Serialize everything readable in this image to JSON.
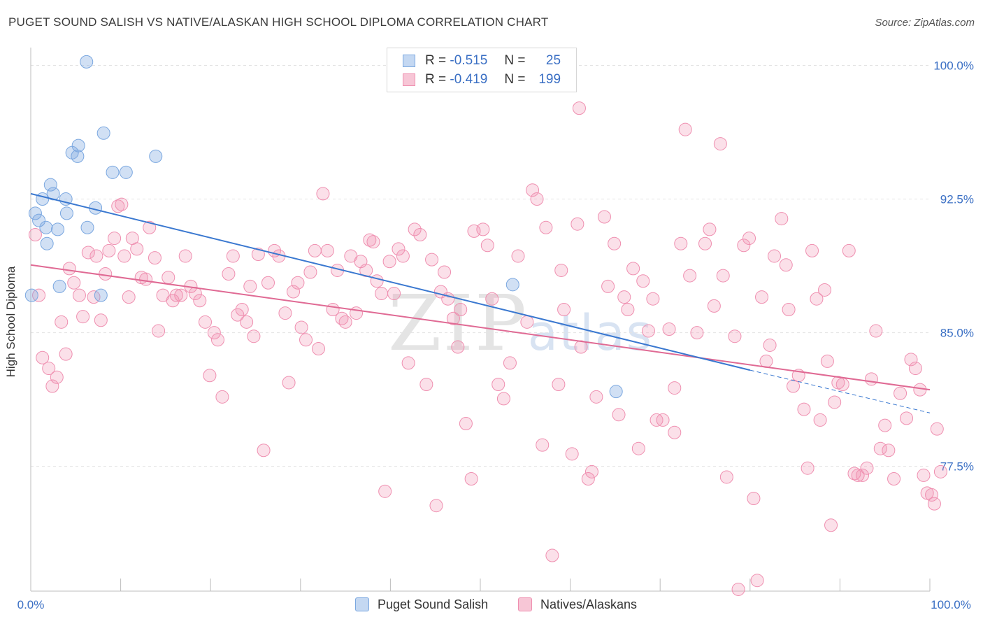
{
  "title": "PUGET SOUND SALISH VS NATIVE/ALASKAN HIGH SCHOOL DIPLOMA CORRELATION CHART",
  "source": "Source: ZipAtlas.com",
  "watermark": {
    "zip": "ZIP",
    "atlas": "atlas"
  },
  "legend": {
    "r_label": "R =",
    "n_label": "N =",
    "series1": {
      "r": "-0.515",
      "n": "25"
    },
    "series2": {
      "r": "-0.419",
      "n": "199"
    }
  },
  "bottom_legend": [
    "Puget Sound Salish",
    "Natives/Alaskans"
  ],
  "chart_data": {
    "type": "scatter",
    "title": "PUGET SOUND SALISH VS NATIVE/ALASKAN HIGH SCHOOL DIPLOMA CORRELATION CHART",
    "xlabel": "",
    "ylabel": "High School Diploma",
    "xlim": [
      0,
      100
    ],
    "ylim": [
      70.5,
      101
    ],
    "x_tick_labels": [
      "0.0%",
      "100.0%"
    ],
    "y_ticks": [
      100.0,
      92.5,
      85.0,
      77.5
    ],
    "y_tick_labels": [
      "100.0%",
      "92.5%",
      "85.0%",
      "77.5%"
    ],
    "colors": {
      "series1": "#7aa7e0",
      "series2": "#ef8fb0",
      "line1": "#3a78d0",
      "line2": "#e06a94",
      "axis_text": "#3a6fc4"
    },
    "series": [
      {
        "name": "Puget Sound Salish",
        "trend": {
          "x0": 0,
          "y0": 92.8,
          "x1": 80,
          "y1": 82.9,
          "dash_to_x": 100,
          "dash_to_y": 80.5
        },
        "points": [
          [
            6.2,
            100.2
          ],
          [
            8.1,
            96.2
          ],
          [
            5.3,
            95.5
          ],
          [
            4.6,
            95.1
          ],
          [
            5.2,
            94.9
          ],
          [
            13.9,
            94.9
          ],
          [
            9.1,
            94.0
          ],
          [
            10.6,
            94.0
          ],
          [
            2.2,
            93.3
          ],
          [
            2.5,
            92.8
          ],
          [
            1.3,
            92.5
          ],
          [
            3.9,
            92.5
          ],
          [
            7.2,
            92.0
          ],
          [
            0.5,
            91.7
          ],
          [
            4.0,
            91.7
          ],
          [
            0.9,
            91.3
          ],
          [
            1.7,
            90.9
          ],
          [
            3.0,
            90.8
          ],
          [
            6.3,
            90.9
          ],
          [
            1.8,
            90.0
          ],
          [
            3.2,
            87.6
          ],
          [
            7.8,
            87.1
          ],
          [
            0.1,
            87.1
          ],
          [
            53.6,
            87.7
          ],
          [
            65.1,
            81.7
          ]
        ]
      },
      {
        "name": "Natives/Alaskans",
        "trend": {
          "x0": 0,
          "y0": 88.8,
          "x1": 100,
          "y1": 81.8
        },
        "points": [
          [
            0.5,
            90.5
          ],
          [
            0.9,
            87.1
          ],
          [
            1.3,
            83.6
          ],
          [
            2.0,
            83.0
          ],
          [
            2.4,
            82.0
          ],
          [
            2.9,
            82.5
          ],
          [
            3.4,
            85.6
          ],
          [
            3.9,
            83.8
          ],
          [
            4.3,
            88.6
          ],
          [
            4.8,
            87.8
          ],
          [
            5.4,
            87.1
          ],
          [
            5.8,
            85.9
          ],
          [
            6.4,
            89.5
          ],
          [
            7.0,
            87.0
          ],
          [
            7.3,
            89.3
          ],
          [
            7.8,
            85.7
          ],
          [
            8.3,
            88.3
          ],
          [
            8.7,
            89.6
          ],
          [
            9.3,
            90.3
          ],
          [
            9.7,
            92.1
          ],
          [
            10.1,
            92.2
          ],
          [
            10.4,
            89.3
          ],
          [
            10.9,
            87.0
          ],
          [
            11.3,
            90.3
          ],
          [
            11.8,
            89.7
          ],
          [
            12.3,
            88.1
          ],
          [
            12.8,
            88.0
          ],
          [
            13.2,
            90.9
          ],
          [
            13.8,
            89.2
          ],
          [
            14.2,
            85.1
          ],
          [
            14.7,
            87.1
          ],
          [
            15.3,
            88.1
          ],
          [
            15.8,
            86.8
          ],
          [
            16.2,
            87.1
          ],
          [
            16.7,
            87.1
          ],
          [
            17.2,
            89.3
          ],
          [
            17.8,
            87.6
          ],
          [
            18.3,
            87.2
          ],
          [
            18.8,
            86.8
          ],
          [
            19.4,
            85.6
          ],
          [
            19.9,
            82.6
          ],
          [
            20.4,
            85.0
          ],
          [
            20.8,
            84.6
          ],
          [
            21.3,
            81.4
          ],
          [
            22.0,
            88.3
          ],
          [
            22.5,
            89.3
          ],
          [
            23.0,
            86.0
          ],
          [
            23.5,
            86.3
          ],
          [
            24.0,
            85.6
          ],
          [
            24.4,
            87.6
          ],
          [
            24.8,
            84.8
          ],
          [
            25.3,
            89.4
          ],
          [
            25.9,
            78.4
          ],
          [
            26.4,
            87.8
          ],
          [
            27.1,
            89.6
          ],
          [
            27.6,
            89.3
          ],
          [
            28.3,
            86.1
          ],
          [
            28.7,
            82.2
          ],
          [
            29.2,
            87.3
          ],
          [
            29.7,
            87.8
          ],
          [
            30.1,
            85.3
          ],
          [
            30.6,
            84.6
          ],
          [
            31.1,
            88.4
          ],
          [
            31.6,
            89.6
          ],
          [
            32.0,
            84.1
          ],
          [
            32.5,
            92.8
          ],
          [
            33.0,
            89.6
          ],
          [
            33.6,
            86.3
          ],
          [
            34.1,
            88.5
          ],
          [
            34.6,
            85.8
          ],
          [
            35.0,
            85.6
          ],
          [
            35.6,
            89.3
          ],
          [
            36.2,
            86.1
          ],
          [
            36.7,
            89.0
          ],
          [
            37.3,
            88.5
          ],
          [
            37.7,
            90.2
          ],
          [
            38.1,
            90.1
          ],
          [
            38.5,
            87.9
          ],
          [
            39.0,
            87.2
          ],
          [
            39.4,
            76.1
          ],
          [
            39.9,
            89.0
          ],
          [
            40.4,
            87.2
          ],
          [
            40.9,
            89.7
          ],
          [
            41.4,
            89.3
          ],
          [
            42.0,
            83.3
          ],
          [
            42.7,
            90.8
          ],
          [
            43.3,
            90.5
          ],
          [
            44.0,
            82.1
          ],
          [
            44.6,
            89.1
          ],
          [
            45.1,
            75.3
          ],
          [
            45.6,
            87.3
          ],
          [
            46.0,
            88.4
          ],
          [
            46.4,
            86.9
          ],
          [
            47.0,
            85.8
          ],
          [
            47.5,
            84.2
          ],
          [
            47.8,
            86.3
          ],
          [
            48.4,
            79.9
          ],
          [
            49.0,
            76.8
          ],
          [
            49.3,
            90.7
          ],
          [
            50.3,
            90.8
          ],
          [
            50.8,
            89.9
          ],
          [
            51.3,
            86.9
          ],
          [
            52.0,
            82.1
          ],
          [
            52.6,
            81.3
          ],
          [
            53.3,
            83.3
          ],
          [
            54.2,
            89.3
          ],
          [
            55.2,
            85.6
          ],
          [
            55.8,
            93.0
          ],
          [
            56.3,
            92.5
          ],
          [
            56.9,
            78.7
          ],
          [
            57.3,
            90.9
          ],
          [
            58.0,
            72.5
          ],
          [
            58.7,
            82.1
          ],
          [
            59.0,
            88.5
          ],
          [
            59.3,
            86.3
          ],
          [
            60.2,
            78.2
          ],
          [
            60.8,
            91.1
          ],
          [
            61.2,
            84.2
          ],
          [
            62.0,
            76.8
          ],
          [
            62.4,
            77.2
          ],
          [
            62.9,
            81.4
          ],
          [
            63.8,
            91.5
          ],
          [
            64.2,
            87.6
          ],
          [
            64.9,
            90.0
          ],
          [
            65.4,
            80.4
          ],
          [
            66.0,
            87.0
          ],
          [
            66.4,
            86.3
          ],
          [
            67.0,
            88.6
          ],
          [
            67.6,
            78.5
          ],
          [
            68.1,
            87.9
          ],
          [
            68.7,
            85.1
          ],
          [
            69.2,
            86.9
          ],
          [
            69.6,
            80.1
          ],
          [
            70.3,
            80.1
          ],
          [
            71.0,
            85.2
          ],
          [
            71.6,
            79.4
          ],
          [
            72.3,
            90.0
          ],
          [
            72.8,
            96.4
          ],
          [
            73.3,
            88.2
          ],
          [
            74.1,
            85.0
          ],
          [
            75.0,
            90.0
          ],
          [
            75.5,
            90.8
          ],
          [
            76.0,
            86.5
          ],
          [
            76.7,
            95.6
          ],
          [
            77.0,
            88.2
          ],
          [
            77.4,
            76.9
          ],
          [
            78.3,
            84.8
          ],
          [
            78.7,
            70.6
          ],
          [
            79.3,
            89.9
          ],
          [
            79.9,
            90.3
          ],
          [
            80.4,
            75.7
          ],
          [
            80.8,
            71.1
          ],
          [
            81.3,
            87.0
          ],
          [
            81.8,
            83.4
          ],
          [
            82.2,
            84.3
          ],
          [
            82.7,
            89.3
          ],
          [
            83.5,
            91.4
          ],
          [
            84.0,
            88.8
          ],
          [
            84.3,
            86.3
          ],
          [
            84.8,
            82.0
          ],
          [
            85.4,
            82.6
          ],
          [
            86.0,
            80.7
          ],
          [
            86.4,
            77.4
          ],
          [
            86.9,
            89.6
          ],
          [
            87.4,
            86.9
          ],
          [
            87.8,
            80.1
          ],
          [
            88.3,
            87.4
          ],
          [
            88.6,
            83.4
          ],
          [
            89.0,
            74.2
          ],
          [
            89.4,
            81.1
          ],
          [
            89.8,
            82.2
          ],
          [
            90.3,
            82.1
          ],
          [
            91.0,
            89.6
          ],
          [
            91.6,
            77.1
          ],
          [
            92.0,
            77.0
          ],
          [
            92.5,
            77.0
          ],
          [
            93.0,
            77.4
          ],
          [
            93.5,
            82.4
          ],
          [
            94.0,
            85.1
          ],
          [
            94.5,
            78.5
          ],
          [
            95.0,
            79.8
          ],
          [
            95.4,
            78.4
          ],
          [
            96.0,
            76.8
          ],
          [
            96.7,
            81.6
          ],
          [
            97.4,
            80.2
          ],
          [
            97.9,
            83.5
          ],
          [
            98.4,
            83.0
          ],
          [
            98.9,
            81.8
          ],
          [
            99.3,
            77.0
          ],
          [
            99.7,
            76.0
          ],
          [
            100.2,
            75.9
          ],
          [
            100.5,
            75.4
          ],
          [
            100.8,
            79.6
          ],
          [
            101.2,
            77.2
          ],
          [
            61.0,
            97.6
          ],
          [
            71.6,
            81.9
          ]
        ]
      }
    ]
  }
}
